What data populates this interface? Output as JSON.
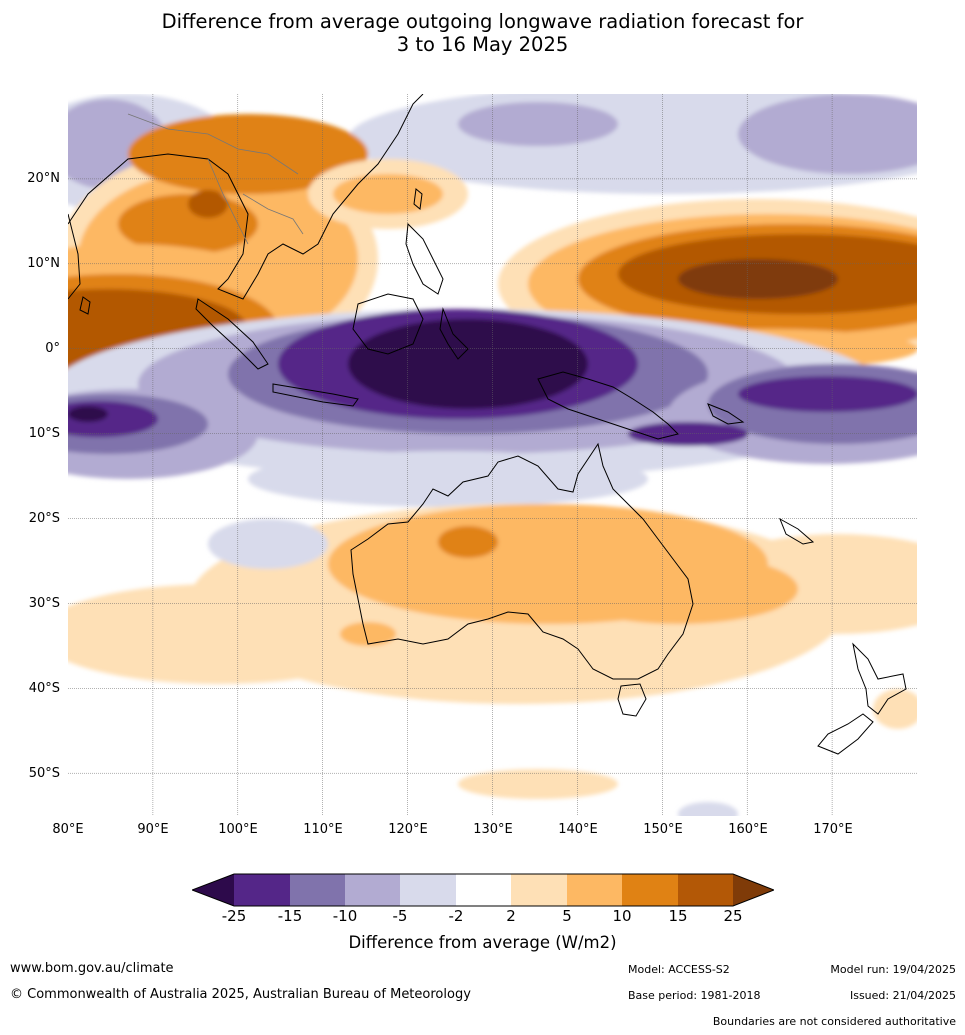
{
  "title_lines": [
    "Difference from average outgoing longwave radiation forecast for",
    "3 to 16 May 2025"
  ],
  "map": {
    "lon_range": [
      80,
      180
    ],
    "lat_range": [
      -55,
      30
    ],
    "lat_labels": [
      "20°N",
      "10°N",
      "0°",
      "10°S",
      "20°S",
      "30°S",
      "40°S",
      "50°S"
    ],
    "lat_values": [
      20,
      10,
      0,
      -10,
      -20,
      -30,
      -40,
      -50
    ],
    "lon_labels": [
      "80°E",
      "90°E",
      "100°E",
      "110°E",
      "120°E",
      "130°E",
      "140°E",
      "150°E",
      "160°E",
      "170°E"
    ],
    "lon_values": [
      80,
      90,
      100,
      110,
      120,
      130,
      140,
      150,
      160,
      170
    ]
  },
  "colorbar": {
    "ticks": [
      "-25",
      "-15",
      "-10",
      "-5",
      "-2",
      "2",
      "5",
      "10",
      "15",
      "25"
    ],
    "colors": [
      "#2d0a4b",
      "#542688",
      "#8073ac",
      "#b2abd2",
      "#d8daeb",
      "#ffffff",
      "#fee0b6",
      "#fdb863",
      "#e08214",
      "#b35806",
      "#7f3b08"
    ],
    "label": "Difference from average (W/m2)"
  },
  "footer": {
    "website": "www.bom.gov.au/climate",
    "copyright": "© Commonwealth of Australia 2025, Australian Bureau of Meteorology",
    "model": "Model: ACCESS-S2",
    "base_period": "Base period: 1981-2018",
    "model_run": "Model run: 19/04/2025",
    "issued": "Issued: 21/04/2025",
    "disclaimer": "Boundaries are not considered authoritative"
  }
}
